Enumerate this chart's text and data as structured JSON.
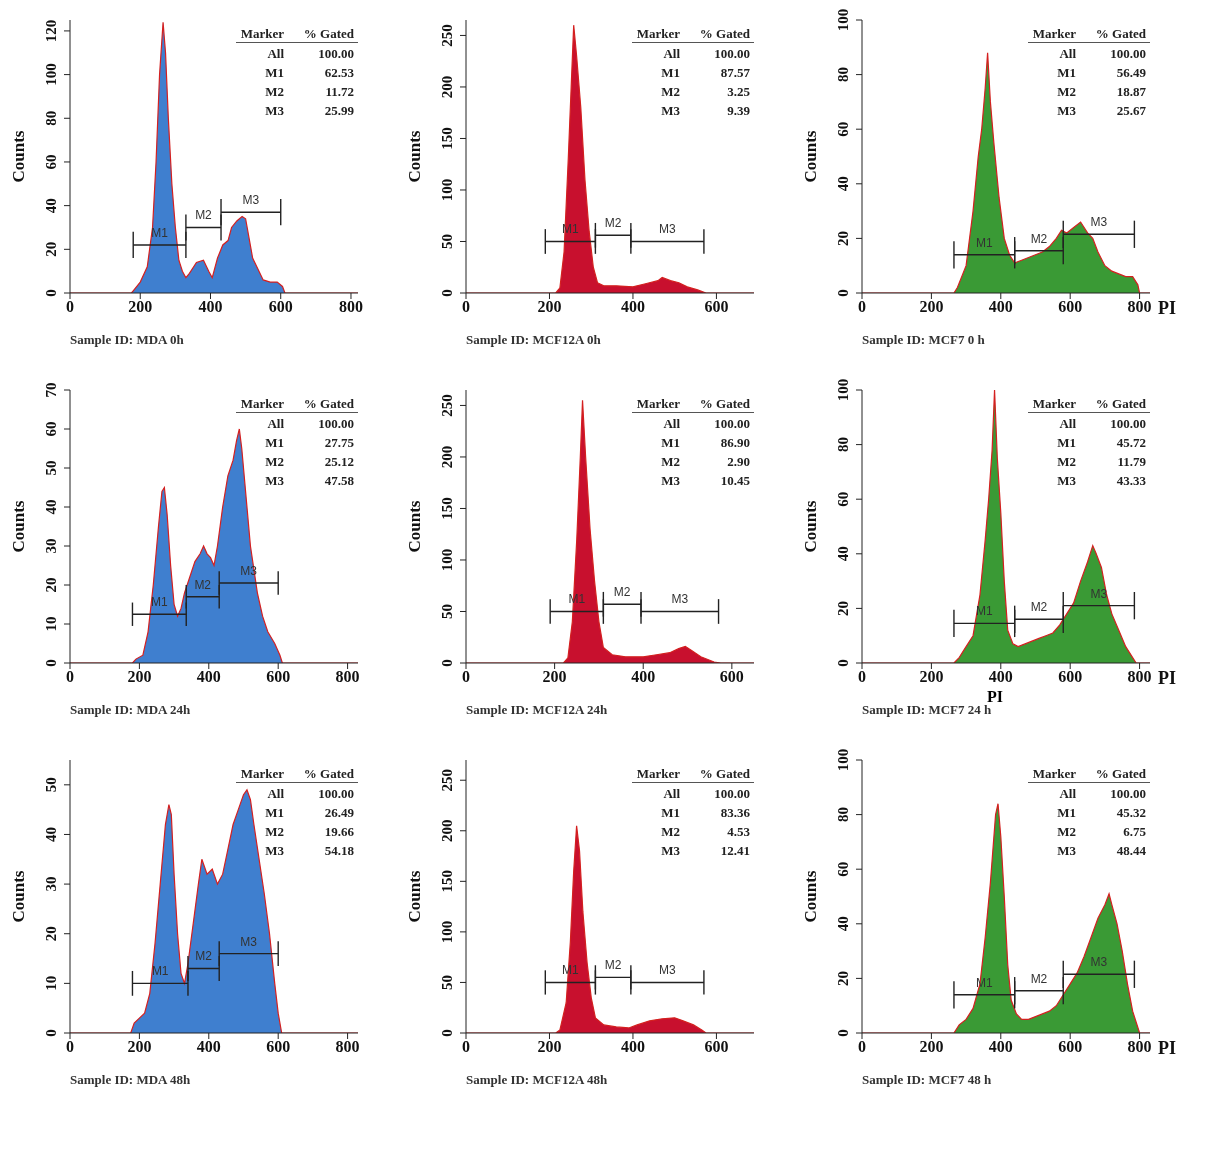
{
  "chart_data": [
    {
      "type": "area",
      "title": "Sample ID: MDA 0h",
      "ylabel": "Counts",
      "xlim": [
        0,
        820
      ],
      "xticks": [
        0,
        200,
        400,
        600,
        800
      ],
      "ylim": [
        0,
        125
      ],
      "yticks": [
        0,
        20,
        40,
        60,
        80,
        100,
        120
      ],
      "series": [
        {
          "color": "#3f7fcf",
          "x": [
            0,
            175,
            180,
            200,
            220,
            235,
            245,
            255,
            265,
            272,
            280,
            290,
            300,
            310,
            320,
            330,
            340,
            360,
            380,
            395,
            405,
            420,
            435,
            450,
            460,
            475,
            490,
            500,
            510,
            520,
            535,
            550,
            570,
            590,
            605,
            612,
            820
          ],
          "values": [
            0,
            0,
            1,
            5,
            12,
            30,
            60,
            100,
            124,
            110,
            80,
            50,
            30,
            15,
            10,
            7,
            9,
            14,
            15,
            10,
            7,
            16,
            22,
            24,
            30,
            33,
            35,
            34,
            25,
            16,
            11,
            6,
            5,
            5,
            3,
            0,
            0
          ]
        },
        {
          "type": "line",
          "name": "M1",
          "color": "#222222",
          "x": [
            180,
            330
          ],
          "values": [
            22,
            22
          ],
          "errors": [
            6,
            6
          ]
        },
        {
          "type": "line",
          "name": "M2",
          "color": "#222222",
          "x": [
            330,
            430
          ],
          "values": [
            30,
            30
          ],
          "errors": [
            6,
            6
          ]
        },
        {
          "type": "line",
          "name": "M3",
          "color": "#222222",
          "x": [
            430,
            600
          ],
          "values": [
            37,
            37
          ],
          "errors": [
            6,
            6
          ]
        }
      ],
      "annotations": [
        "Marker",
        "% Gated",
        "All",
        "100.00",
        "M1",
        "62.53",
        "M2",
        "11.72",
        "M3",
        "25.99"
      ]
    },
    {
      "type": "area",
      "title": "Sample ID: MCF12A 0h",
      "ylabel": "Counts",
      "xlim": [
        0,
        690
      ],
      "xticks": [
        0,
        200,
        400,
        600
      ],
      "ylim": [
        0,
        265
      ],
      "yticks": [
        0,
        50,
        100,
        150,
        200,
        250
      ],
      "series": [
        {
          "color": "#c8102e",
          "x": [
            0,
            215,
            225,
            235,
            245,
            252,
            258,
            265,
            275,
            285,
            295,
            305,
            315,
            330,
            360,
            400,
            430,
            460,
            470,
            490,
            510,
            530,
            555,
            575,
            690
          ],
          "values": [
            0,
            0,
            5,
            40,
            130,
            200,
            260,
            230,
            180,
            110,
            60,
            25,
            10,
            7,
            7,
            6,
            9,
            12,
            15,
            12,
            10,
            6,
            3,
            0,
            0
          ]
        },
        {
          "type": "line",
          "name": "M1",
          "color": "#222222",
          "x": [
            190,
            310
          ],
          "values": [
            50,
            50
          ],
          "errors": [
            12,
            12
          ]
        },
        {
          "type": "line",
          "name": "M2",
          "color": "#222222",
          "x": [
            310,
            395
          ],
          "values": [
            56,
            56
          ],
          "errors": [
            12,
            12
          ]
        },
        {
          "type": "line",
          "name": "M3",
          "color": "#222222",
          "x": [
            395,
            570
          ],
          "values": [
            50,
            50
          ],
          "errors": [
            12,
            12
          ]
        }
      ],
      "annotations": [
        "Marker",
        "% Gated",
        "All",
        "100.00",
        "M1",
        "87.57",
        "M2",
        "3.25",
        "M3",
        "9.39"
      ]
    },
    {
      "type": "area",
      "title": "Sample ID: MCF7 0 h",
      "ylabel": "Counts",
      "xlabel": "PI",
      "xlim": [
        0,
        830
      ],
      "xticks": [
        0,
        200,
        400,
        600,
        800
      ],
      "ylim": [
        0,
        100
      ],
      "yticks": [
        0,
        20,
        40,
        60,
        80,
        100
      ],
      "series": [
        {
          "color": "#3a9a35",
          "x": [
            0,
            265,
            275,
            300,
            320,
            335,
            345,
            355,
            362,
            370,
            380,
            395,
            410,
            425,
            440,
            460,
            480,
            500,
            520,
            540,
            560,
            575,
            590,
            610,
            630,
            650,
            665,
            680,
            700,
            720,
            740,
            760,
            780,
            795,
            800,
            830
          ],
          "values": [
            0,
            0,
            2,
            10,
            30,
            50,
            60,
            75,
            88,
            70,
            55,
            35,
            20,
            14,
            11,
            12,
            13,
            14,
            15,
            17,
            20,
            23,
            22,
            24,
            26,
            22,
            20,
            15,
            10,
            8,
            7,
            6,
            6,
            3,
            0,
            0
          ]
        },
        {
          "type": "line",
          "name": "M1",
          "color": "#222222",
          "x": [
            265,
            440
          ],
          "values": [
            14,
            14
          ],
          "errors": [
            5,
            5
          ]
        },
        {
          "type": "line",
          "name": "M2",
          "color": "#222222",
          "x": [
            440,
            580
          ],
          "values": [
            15.5,
            15.5
          ],
          "errors": [
            5,
            5
          ]
        },
        {
          "type": "line",
          "name": "M3",
          "color": "#222222",
          "x": [
            580,
            785
          ],
          "values": [
            21.5,
            21.5
          ],
          "errors": [
            5,
            5
          ]
        }
      ],
      "annotations": [
        "Marker",
        "% Gated",
        "All",
        "100.00",
        "M1",
        "56.49",
        "M2",
        "18.87",
        "M3",
        "25.67"
      ]
    },
    {
      "type": "area",
      "title": "Sample ID: MDA 24h",
      "ylabel": "Counts",
      "xlim": [
        0,
        830
      ],
      "xticks": [
        0,
        200,
        400,
        600,
        800
      ],
      "ylim": [
        0,
        70
      ],
      "yticks": [
        0,
        10,
        20,
        30,
        40,
        50,
        60,
        70
      ],
      "series": [
        {
          "color": "#3f7fcf",
          "x": [
            0,
            180,
            190,
            210,
            225,
            240,
            255,
            265,
            272,
            280,
            290,
            300,
            310,
            320,
            330,
            345,
            360,
            375,
            385,
            395,
            405,
            415,
            425,
            440,
            455,
            470,
            480,
            488,
            495,
            505,
            520,
            540,
            555,
            570,
            590,
            605,
            612,
            830
          ],
          "values": [
            0,
            0,
            1,
            2,
            8,
            20,
            35,
            44,
            45,
            38,
            25,
            15,
            12,
            14,
            18,
            22,
            26,
            28,
            30,
            28,
            27,
            25,
            30,
            40,
            48,
            52,
            57,
            60,
            55,
            45,
            30,
            18,
            12,
            8,
            5,
            2,
            0,
            0
          ]
        },
        {
          "type": "line",
          "name": "M1",
          "color": "#222222",
          "x": [
            180,
            335
          ],
          "values": [
            12.5,
            12.5
          ],
          "errors": [
            3,
            3
          ]
        },
        {
          "type": "line",
          "name": "M2",
          "color": "#222222",
          "x": [
            335,
            430
          ],
          "values": [
            17,
            17
          ],
          "errors": [
            3,
            3
          ]
        },
        {
          "type": "line",
          "name": "M3",
          "color": "#222222",
          "x": [
            430,
            600
          ],
          "values": [
            20.5,
            20.5
          ],
          "errors": [
            3,
            3
          ]
        }
      ],
      "annotations": [
        "Marker",
        "% Gated",
        "All",
        "100.00",
        "M1",
        "27.75",
        "M2",
        "25.12",
        "M3",
        "47.58"
      ]
    },
    {
      "type": "area",
      "title": "Sample ID: MCF12A 24h",
      "ylabel": "Counts",
      "xlim": [
        0,
        650
      ],
      "xticks": [
        0,
        200,
        400,
        600
      ],
      "ylim": [
        0,
        265
      ],
      "yticks": [
        0,
        50,
        100,
        150,
        200,
        250
      ],
      "series": [
        {
          "color": "#c8102e",
          "x": [
            0,
            220,
            230,
            240,
            250,
            258,
            263,
            270,
            280,
            290,
            300,
            310,
            330,
            360,
            400,
            430,
            460,
            480,
            495,
            510,
            530,
            560,
            575,
            650
          ],
          "values": [
            0,
            0,
            5,
            40,
            120,
            200,
            255,
            200,
            130,
            80,
            40,
            15,
            8,
            6,
            6,
            8,
            10,
            14,
            16,
            12,
            6,
            1,
            0,
            0
          ]
        },
        {
          "type": "line",
          "name": "M1",
          "color": "#222222",
          "x": [
            190,
            310
          ],
          "values": [
            50,
            50
          ],
          "errors": [
            12,
            12
          ]
        },
        {
          "type": "line",
          "name": "M2",
          "color": "#222222",
          "x": [
            310,
            395
          ],
          "values": [
            57,
            57
          ],
          "errors": [
            12,
            12
          ]
        },
        {
          "type": "line",
          "name": "M3",
          "color": "#222222",
          "x": [
            395,
            570
          ],
          "values": [
            50,
            50
          ],
          "errors": [
            12,
            12
          ]
        }
      ],
      "annotations": [
        "Marker",
        "% Gated",
        "All",
        "100.00",
        "M1",
        "86.90",
        "M2",
        "2.90",
        "M3",
        "10.45"
      ]
    },
    {
      "type": "area",
      "title": "Sample ID: MCF7 24 h",
      "ylabel": "Counts",
      "xlabel": "PI",
      "xlim": [
        0,
        830
      ],
      "xticks": [
        0,
        200,
        400,
        600,
        800
      ],
      "ylim": [
        0,
        100
      ],
      "yticks": [
        0,
        20,
        40,
        60,
        80,
        100
      ],
      "series": [
        {
          "color": "#3a9a35",
          "x": [
            0,
            265,
            280,
            300,
            320,
            340,
            355,
            365,
            375,
            382,
            390,
            400,
            410,
            420,
            435,
            450,
            470,
            490,
            510,
            530,
            550,
            570,
            590,
            610,
            630,
            650,
            665,
            675,
            690,
            705,
            720,
            740,
            760,
            775,
            790,
            830
          ],
          "values": [
            0,
            0,
            2,
            6,
            10,
            25,
            45,
            60,
            78,
            100,
            75,
            55,
            30,
            12,
            7,
            6,
            7,
            8,
            9,
            10,
            11,
            14,
            18,
            22,
            30,
            37,
            43,
            40,
            35,
            25,
            18,
            12,
            6,
            3,
            0,
            0
          ]
        },
        {
          "type": "line",
          "name": "M1",
          "color": "#222222",
          "x": [
            265,
            440
          ],
          "values": [
            14.5,
            14.5
          ],
          "errors": [
            5,
            5
          ]
        },
        {
          "type": "line",
          "name": "M2",
          "color": "#222222",
          "x": [
            440,
            580
          ],
          "values": [
            16,
            16
          ],
          "errors": [
            5,
            5
          ]
        },
        {
          "type": "line",
          "name": "M3",
          "color": "#222222",
          "x": [
            580,
            785
          ],
          "values": [
            21,
            21
          ],
          "errors": [
            5,
            5
          ]
        }
      ],
      "annotations": [
        "Marker",
        "% Gated",
        "All",
        "100.00",
        "M1",
        "45.72",
        "M2",
        "11.79",
        "M3",
        "43.33",
        "PI"
      ]
    },
    {
      "type": "area",
      "title": "Sample ID: MDA 48h",
      "ylabel": "Counts",
      "xlim": [
        0,
        830
      ],
      "xticks": [
        0,
        200,
        400,
        600,
        800
      ],
      "ylim": [
        0,
        55
      ],
      "yticks": [
        0,
        10,
        20,
        30,
        40,
        50
      ],
      "series": [
        {
          "color": "#3f7fcf",
          "x": [
            0,
            175,
            185,
            200,
            215,
            230,
            245,
            260,
            275,
            285,
            292,
            300,
            310,
            320,
            330,
            340,
            355,
            370,
            380,
            395,
            410,
            425,
            440,
            455,
            470,
            485,
            500,
            510,
            520,
            530,
            545,
            560,
            575,
            590,
            600,
            610,
            830
          ],
          "values": [
            0,
            0,
            2,
            3,
            4,
            8,
            18,
            30,
            42,
            46,
            44,
            32,
            20,
            12,
            10,
            14,
            22,
            30,
            35,
            32,
            33,
            30,
            32,
            37,
            42,
            45,
            48,
            49,
            47,
            42,
            35,
            28,
            20,
            10,
            4,
            0,
            0
          ]
        },
        {
          "type": "line",
          "name": "M1",
          "color": "#222222",
          "x": [
            180,
            340
          ],
          "values": [
            10,
            10
          ],
          "errors": [
            2.5,
            2.5
          ]
        },
        {
          "type": "line",
          "name": "M2",
          "color": "#222222",
          "x": [
            340,
            430
          ],
          "values": [
            13,
            13
          ],
          "errors": [
            2.5,
            2.5
          ]
        },
        {
          "type": "line",
          "name": "M3",
          "color": "#222222",
          "x": [
            430,
            600
          ],
          "values": [
            16,
            16
          ],
          "errors": [
            2.5,
            2.5
          ]
        }
      ],
      "annotations": [
        "Marker",
        "% Gated",
        "All",
        "100.00",
        "M1",
        "26.49",
        "M2",
        "19.66",
        "M3",
        "54.18"
      ]
    },
    {
      "type": "area",
      "title": "Sample ID: MCF12A 48h",
      "ylabel": "Counts",
      "xlim": [
        0,
        690
      ],
      "xticks": [
        0,
        200,
        400,
        600
      ],
      "ylim": [
        0,
        270
      ],
      "yticks": [
        0,
        50,
        100,
        150,
        200,
        250
      ],
      "series": [
        {
          "color": "#c8102e",
          "x": [
            0,
            215,
            225,
            240,
            250,
            258,
            265,
            272,
            280,
            290,
            300,
            310,
            330,
            360,
            390,
            410,
            440,
            470,
            500,
            520,
            545,
            565,
            575,
            690
          ],
          "values": [
            0,
            0,
            3,
            30,
            90,
            160,
            205,
            180,
            120,
            70,
            35,
            15,
            8,
            6,
            5,
            8,
            12,
            14,
            15,
            12,
            8,
            3,
            0,
            0
          ]
        },
        {
          "type": "line",
          "name": "M1",
          "color": "#222222",
          "x": [
            190,
            310
          ],
          "values": [
            50,
            50
          ],
          "errors": [
            12,
            12
          ]
        },
        {
          "type": "line",
          "name": "M2",
          "color": "#222222",
          "x": [
            310,
            395
          ],
          "values": [
            55,
            55
          ],
          "errors": [
            12,
            12
          ]
        },
        {
          "type": "line",
          "name": "M3",
          "color": "#222222",
          "x": [
            395,
            570
          ],
          "values": [
            50,
            50
          ],
          "errors": [
            12,
            12
          ]
        }
      ],
      "annotations": [
        "Marker",
        "% Gated",
        "All",
        "100.00",
        "M1",
        "83.36",
        "M2",
        "4.53",
        "M3",
        "12.41"
      ]
    },
    {
      "type": "area",
      "title": "Sample ID: MCF7 48 h",
      "ylabel": "Counts",
      "xlabel": "PI",
      "xlim": [
        0,
        830
      ],
      "xticks": [
        0,
        200,
        400,
        600,
        800
      ],
      "ylim": [
        0,
        100
      ],
      "yticks": [
        0,
        20,
        40,
        60,
        80,
        100
      ],
      "series": [
        {
          "color": "#3a9a35",
          "x": [
            0,
            265,
            280,
            300,
            320,
            340,
            355,
            370,
            385,
            392,
            400,
            410,
            420,
            430,
            445,
            460,
            480,
            500,
            520,
            540,
            560,
            580,
            600,
            620,
            640,
            660,
            680,
            700,
            712,
            720,
            735,
            750,
            765,
            780,
            795,
            800,
            830
          ],
          "values": [
            0,
            0,
            3,
            5,
            9,
            18,
            35,
            55,
            80,
            84,
            72,
            50,
            25,
            12,
            7,
            5,
            5,
            6,
            7,
            8,
            10,
            14,
            18,
            22,
            28,
            35,
            42,
            47,
            51,
            47,
            40,
            30,
            18,
            8,
            2,
            0,
            0
          ]
        },
        {
          "type": "line",
          "name": "M1",
          "color": "#222222",
          "x": [
            265,
            440
          ],
          "values": [
            14,
            14
          ],
          "errors": [
            5,
            5
          ]
        },
        {
          "type": "line",
          "name": "M2",
          "color": "#222222",
          "x": [
            440,
            580
          ],
          "values": [
            15.5,
            15.5
          ],
          "errors": [
            5,
            5
          ]
        },
        {
          "type": "line",
          "name": "M3",
          "color": "#222222",
          "x": [
            580,
            785
          ],
          "values": [
            21.5,
            21.5
          ],
          "errors": [
            5,
            5
          ]
        }
      ],
      "annotations": [
        "Marker",
        "% Gated",
        "All",
        "100.00",
        "M1",
        "45.32",
        "M2",
        "6.75",
        "M3",
        "48.44"
      ]
    }
  ]
}
